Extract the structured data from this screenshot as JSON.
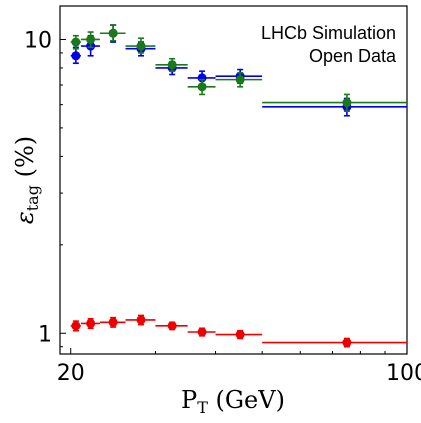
{
  "chart_data": {
    "type": "scatter",
    "title": "",
    "xlabel": "P_T (GeV)",
    "ylabel": "ε_tag (%)",
    "xscale": "log",
    "yscale": "log",
    "xlim": [
      19,
      100
    ],
    "ylim": [
      0.85,
      13
    ],
    "x_ticks": [
      {
        "value": 20,
        "label": "20"
      },
      {
        "value": 100,
        "label": "100"
      }
    ],
    "y_ticks": [
      {
        "value": 1,
        "label": "1"
      },
      {
        "value": 10,
        "label": "10"
      }
    ],
    "annotations": [
      "LHCb Simulation",
      "Open Data"
    ],
    "legend": "none",
    "grid": false,
    "series": [
      {
        "color": "#0000ee",
        "points": [
          {
            "x": 20.5,
            "xlo": 20.0,
            "xhi": 21.0,
            "y": 8.8,
            "ylo": 8.3,
            "yhi": 9.4
          },
          {
            "x": 22.0,
            "xlo": 21.0,
            "xhi": 23.0,
            "y": 9.5,
            "ylo": 8.8,
            "yhi": 10.3
          },
          {
            "x": 24.5,
            "xlo": 23.0,
            "xhi": 26.0,
            "y": 10.5,
            "ylo": 9.8,
            "yhi": 11.2
          },
          {
            "x": 28.0,
            "xlo": 26.0,
            "xhi": 30.0,
            "y": 9.3,
            "ylo": 8.8,
            "yhi": 9.8
          },
          {
            "x": 32.5,
            "xlo": 30.0,
            "xhi": 35.0,
            "y": 8.0,
            "ylo": 7.6,
            "yhi": 8.4
          },
          {
            "x": 37.5,
            "xlo": 35.0,
            "xhi": 40.0,
            "y": 7.4,
            "ylo": 7.0,
            "yhi": 7.8
          },
          {
            "x": 45.0,
            "xlo": 40.0,
            "xhi": 50.0,
            "y": 7.5,
            "ylo": 7.1,
            "yhi": 7.9
          },
          {
            "x": 75.0,
            "xlo": 50.0,
            "xhi": 100.0,
            "y": 5.9,
            "ylo": 5.5,
            "yhi": 6.3
          }
        ]
      },
      {
        "color": "#1a7a1a",
        "points": [
          {
            "x": 20.5,
            "xlo": 20.0,
            "xhi": 21.0,
            "y": 9.8,
            "ylo": 9.3,
            "yhi": 10.3
          },
          {
            "x": 22.0,
            "xlo": 21.0,
            "xhi": 23.0,
            "y": 10.0,
            "ylo": 9.4,
            "yhi": 10.6
          },
          {
            "x": 24.5,
            "xlo": 23.0,
            "xhi": 26.0,
            "y": 10.5,
            "ylo": 9.9,
            "yhi": 11.2
          },
          {
            "x": 28.0,
            "xlo": 26.0,
            "xhi": 30.0,
            "y": 9.5,
            "ylo": 9.0,
            "yhi": 10.1
          },
          {
            "x": 32.5,
            "xlo": 30.0,
            "xhi": 35.0,
            "y": 8.2,
            "ylo": 7.8,
            "yhi": 8.6
          },
          {
            "x": 37.5,
            "xlo": 35.0,
            "xhi": 40.0,
            "y": 6.9,
            "ylo": 6.5,
            "yhi": 7.3
          },
          {
            "x": 45.0,
            "xlo": 40.0,
            "xhi": 50.0,
            "y": 7.3,
            "ylo": 6.9,
            "yhi": 7.7
          },
          {
            "x": 75.0,
            "xlo": 50.0,
            "xhi": 100.0,
            "y": 6.1,
            "ylo": 5.7,
            "yhi": 6.5
          }
        ]
      },
      {
        "color": "#ee0000",
        "points": [
          {
            "x": 20.5,
            "xlo": 20.0,
            "xhi": 21.0,
            "y": 1.06,
            "ylo": 1.02,
            "yhi": 1.1
          },
          {
            "x": 22.0,
            "xlo": 21.0,
            "xhi": 23.0,
            "y": 1.08,
            "ylo": 1.04,
            "yhi": 1.12
          },
          {
            "x": 24.5,
            "xlo": 23.0,
            "xhi": 26.0,
            "y": 1.09,
            "ylo": 1.05,
            "yhi": 1.13
          },
          {
            "x": 28.0,
            "xlo": 26.0,
            "xhi": 30.0,
            "y": 1.11,
            "ylo": 1.07,
            "yhi": 1.15
          },
          {
            "x": 32.5,
            "xlo": 30.0,
            "xhi": 35.0,
            "y": 1.06,
            "ylo": 1.03,
            "yhi": 1.09
          },
          {
            "x": 37.5,
            "xlo": 35.0,
            "xhi": 40.0,
            "y": 1.01,
            "ylo": 0.98,
            "yhi": 1.04
          },
          {
            "x": 45.0,
            "xlo": 40.0,
            "xhi": 50.0,
            "y": 0.99,
            "ylo": 0.96,
            "yhi": 1.02
          },
          {
            "x": 75.0,
            "xlo": 50.0,
            "xhi": 100.0,
            "y": 0.93,
            "ylo": 0.9,
            "yhi": 0.96
          }
        ]
      }
    ]
  }
}
